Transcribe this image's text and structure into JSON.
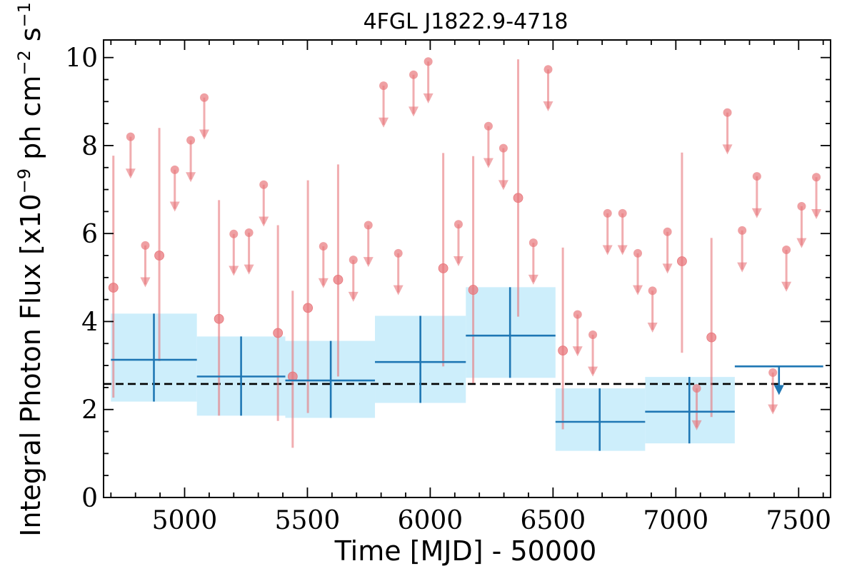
{
  "chart_data": {
    "type": "scatter",
    "title": "4FGL J1822.9-4718",
    "xlabel": "Time [MJD] - 50000",
    "ylabel_parts": [
      "Integral Photon Flux [x10",
      "−9",
      " ph cm",
      "−2",
      " s",
      "−1",
      "]"
    ],
    "xlim": [
      4670,
      7630
    ],
    "ylim": [
      0,
      10.4
    ],
    "x_ticks": [
      5000,
      5500,
      6000,
      6500,
      7000,
      7500
    ],
    "y_ticks": [
      0,
      2,
      4,
      6,
      8,
      10
    ],
    "grid": false,
    "mean_flux_line": 2.58,
    "colors": {
      "bins": "#1f77b4",
      "bin_band": "#cdeefb",
      "points": "#e8777c",
      "mean_line": "#000000"
    },
    "series": [
      {
        "style": "coarse-bins",
        "points": [
          {
            "x": 4875,
            "x_lo": 4700,
            "x_hi": 5050,
            "y": 3.13,
            "y_lo": 2.18,
            "y_hi": 4.18
          },
          {
            "x": 5230,
            "x_lo": 5050,
            "x_hi": 5410,
            "y": 2.75,
            "y_lo": 1.86,
            "y_hi": 3.66
          },
          {
            "x": 5595,
            "x_lo": 5410,
            "x_hi": 5775,
            "y": 2.66,
            "y_lo": 1.81,
            "y_hi": 3.56
          },
          {
            "x": 5960,
            "x_lo": 5775,
            "x_hi": 6145,
            "y": 3.08,
            "y_lo": 2.15,
            "y_hi": 4.13
          },
          {
            "x": 6325,
            "x_lo": 6145,
            "x_hi": 6510,
            "y": 3.68,
            "y_lo": 2.72,
            "y_hi": 4.78
          },
          {
            "x": 6690,
            "x_lo": 6510,
            "x_hi": 6875,
            "y": 1.72,
            "y_lo": 1.06,
            "y_hi": 2.48
          },
          {
            "x": 7055,
            "x_lo": 6875,
            "x_hi": 7240,
            "y": 1.95,
            "y_lo": 1.23,
            "y_hi": 2.74
          }
        ],
        "upper_limits": [
          {
            "x": 7420,
            "x_lo": 7240,
            "x_hi": 7600,
            "y": 2.98
          }
        ]
      },
      {
        "style": "fine-bins",
        "points": [
          {
            "x": 4710,
            "y": 4.77,
            "y_lo": 2.27,
            "y_hi": 7.77
          },
          {
            "x": 4897,
            "y": 5.5,
            "y_lo": 3.1,
            "y_hi": 8.4
          },
          {
            "x": 5140,
            "y": 4.06,
            "y_lo": 1.86,
            "y_hi": 6.76
          },
          {
            "x": 5380,
            "y": 3.74,
            "y_lo": 1.74,
            "y_hi": 6.19
          },
          {
            "x": 5440,
            "y": 2.75,
            "y_lo": 1.13,
            "y_hi": 4.7
          },
          {
            "x": 5502,
            "y": 4.31,
            "y_lo": 1.92,
            "y_hi": 7.21
          },
          {
            "x": 5625,
            "y": 4.95,
            "y_lo": 2.75,
            "y_hi": 7.57
          },
          {
            "x": 6053,
            "y": 5.21,
            "y_lo": 2.98,
            "y_hi": 7.83
          },
          {
            "x": 6175,
            "y": 4.72,
            "y_lo": 2.6,
            "y_hi": 7.76
          },
          {
            "x": 6358,
            "y": 6.81,
            "y_lo": 4.11,
            "y_hi": 9.96
          },
          {
            "x": 6540,
            "y": 3.34,
            "y_lo": 1.55,
            "y_hi": 5.68
          },
          {
            "x": 7025,
            "y": 5.37,
            "y_lo": 3.29,
            "y_hi": 7.84
          },
          {
            "x": 7145,
            "y": 3.64,
            "y_lo": 1.83,
            "y_hi": 5.9
          }
        ],
        "upper_limits": [
          {
            "x": 4780,
            "y": 8.2
          },
          {
            "x": 4840,
            "y": 5.73
          },
          {
            "x": 4960,
            "y": 7.45
          },
          {
            "x": 5025,
            "y": 8.12
          },
          {
            "x": 5080,
            "y": 9.09
          },
          {
            "x": 5200,
            "y": 5.99
          },
          {
            "x": 5262,
            "y": 6.02
          },
          {
            "x": 5322,
            "y": 7.11
          },
          {
            "x": 5565,
            "y": 5.71
          },
          {
            "x": 5687,
            "y": 5.4
          },
          {
            "x": 5748,
            "y": 6.19
          },
          {
            "x": 5810,
            "y": 9.36
          },
          {
            "x": 5870,
            "y": 5.55
          },
          {
            "x": 5932,
            "y": 9.61
          },
          {
            "x": 5992,
            "y": 9.91
          },
          {
            "x": 6115,
            "y": 6.21
          },
          {
            "x": 6237,
            "y": 8.44
          },
          {
            "x": 6298,
            "y": 7.94
          },
          {
            "x": 6420,
            "y": 5.79
          },
          {
            "x": 6480,
            "y": 9.73
          },
          {
            "x": 6600,
            "y": 4.16
          },
          {
            "x": 6662,
            "y": 3.7
          },
          {
            "x": 6722,
            "y": 6.46
          },
          {
            "x": 6783,
            "y": 6.46
          },
          {
            "x": 6845,
            "y": 5.55
          },
          {
            "x": 6905,
            "y": 4.7
          },
          {
            "x": 6966,
            "y": 6.04
          },
          {
            "x": 7085,
            "y": 2.48
          },
          {
            "x": 7210,
            "y": 8.75
          },
          {
            "x": 7270,
            "y": 6.07
          },
          {
            "x": 7330,
            "y": 7.3
          },
          {
            "x": 7395,
            "y": 2.84
          },
          {
            "x": 7450,
            "y": 5.63
          },
          {
            "x": 7512,
            "y": 6.62
          },
          {
            "x": 7572,
            "y": 7.28
          }
        ]
      }
    ]
  }
}
